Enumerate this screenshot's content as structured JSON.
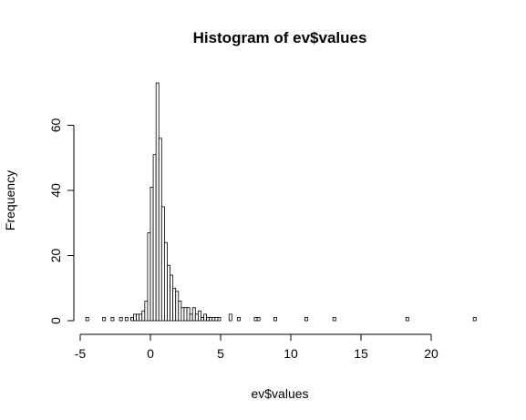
{
  "chart_data": {
    "type": "bar",
    "title": "Histogram of ev$values",
    "xlabel": "ev$values",
    "ylabel": "Frequency",
    "xlim": [
      -5,
      23.5
    ],
    "ylim": [
      0,
      75
    ],
    "x_ticks": [
      -5,
      0,
      5,
      10,
      15,
      20
    ],
    "y_ticks": [
      0,
      20,
      40,
      60
    ],
    "bin_width": 0.2,
    "bins": [
      {
        "x0": -4.6,
        "count": 1
      },
      {
        "x0": -3.4,
        "count": 1
      },
      {
        "x0": -2.8,
        "count": 1
      },
      {
        "x0": -2.2,
        "count": 1
      },
      {
        "x0": -1.8,
        "count": 1
      },
      {
        "x0": -1.4,
        "count": 1
      },
      {
        "x0": -1.2,
        "count": 2
      },
      {
        "x0": -1.0,
        "count": 2
      },
      {
        "x0": -0.8,
        "count": 2
      },
      {
        "x0": -0.6,
        "count": 3
      },
      {
        "x0": -0.4,
        "count": 6
      },
      {
        "x0": -0.2,
        "count": 27
      },
      {
        "x0": 0.0,
        "count": 41
      },
      {
        "x0": 0.2,
        "count": 51
      },
      {
        "x0": 0.4,
        "count": 73
      },
      {
        "x0": 0.6,
        "count": 56
      },
      {
        "x0": 0.8,
        "count": 35
      },
      {
        "x0": 1.0,
        "count": 24
      },
      {
        "x0": 1.2,
        "count": 17
      },
      {
        "x0": 1.4,
        "count": 14
      },
      {
        "x0": 1.6,
        "count": 10
      },
      {
        "x0": 1.8,
        "count": 9
      },
      {
        "x0": 2.0,
        "count": 6
      },
      {
        "x0": 2.2,
        "count": 4
      },
      {
        "x0": 2.4,
        "count": 4
      },
      {
        "x0": 2.6,
        "count": 4
      },
      {
        "x0": 2.8,
        "count": 2
      },
      {
        "x0": 3.0,
        "count": 4
      },
      {
        "x0": 3.2,
        "count": 2
      },
      {
        "x0": 3.4,
        "count": 3
      },
      {
        "x0": 3.6,
        "count": 1
      },
      {
        "x0": 3.8,
        "count": 2
      },
      {
        "x0": 4.0,
        "count": 1
      },
      {
        "x0": 4.2,
        "count": 1
      },
      {
        "x0": 4.4,
        "count": 1
      },
      {
        "x0": 4.6,
        "count": 1
      },
      {
        "x0": 4.8,
        "count": 1
      },
      {
        "x0": 5.6,
        "count": 2
      },
      {
        "x0": 6.2,
        "count": 1
      },
      {
        "x0": 7.4,
        "count": 1
      },
      {
        "x0": 7.6,
        "count": 1
      },
      {
        "x0": 8.8,
        "count": 1
      },
      {
        "x0": 11.0,
        "count": 1
      },
      {
        "x0": 13.0,
        "count": 1
      },
      {
        "x0": 18.2,
        "count": 1
      },
      {
        "x0": 23.0,
        "count": 1
      }
    ]
  }
}
